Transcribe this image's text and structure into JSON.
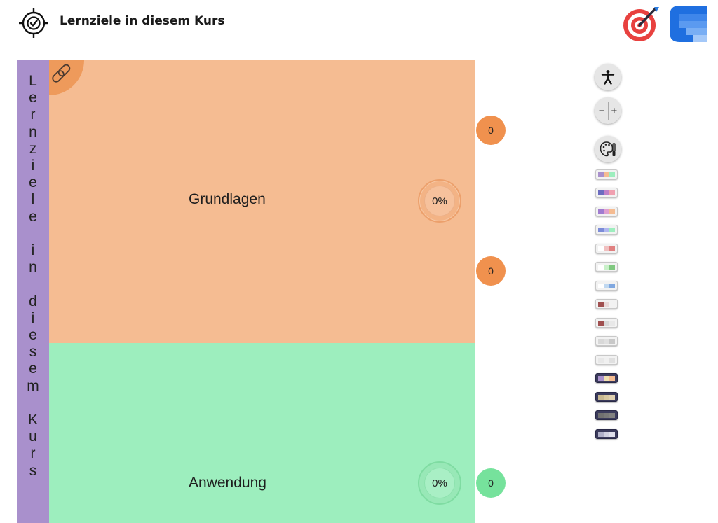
{
  "header": {
    "title": "Lernziele in diesem Kurs",
    "logos": [
      "target-logo",
      "blue-app-logo"
    ]
  },
  "sidebar_label": "Lernziele in diesem Kurs",
  "areas": [
    {
      "label": "Grundlagen",
      "progress": "0%",
      "color": "#f5bc92"
    },
    {
      "label": "Anwendung",
      "progress": "0%",
      "color": "#9deebe"
    }
  ],
  "badges": [
    {
      "value": "0",
      "color": "#f0914e"
    },
    {
      "value": "0",
      "color": "#f0914e"
    },
    {
      "value": "0",
      "color": "#76e29c"
    }
  ],
  "toolbar": {
    "accessibility_icon": "accessibility-icon",
    "zoom_minus": "−",
    "zoom_plus": "+",
    "palette_icon": "palette-icon"
  },
  "color_themes": [
    {
      "dark": false,
      "colors": [
        "#a990cc",
        "#f5bc92",
        "#9deebe"
      ]
    },
    {
      "dark": false,
      "colors": [
        "#6c6cc0",
        "#c080c8",
        "#f0a0b0"
      ]
    },
    {
      "dark": false,
      "colors": [
        "#a07cd0",
        "#e0a0d0",
        "#f5bc92"
      ]
    },
    {
      "dark": false,
      "colors": [
        "#7c8cd8",
        "#b0b8f0",
        "#9deebe"
      ]
    },
    {
      "dark": false,
      "colors": [
        "#ffffff",
        "#f0c0c0",
        "#e08080"
      ]
    },
    {
      "dark": false,
      "colors": [
        "#ffffff",
        "#c8f0c8",
        "#80c880"
      ]
    },
    {
      "dark": false,
      "colors": [
        "#ffffff",
        "#c0d8f0",
        "#80a8e0"
      ]
    },
    {
      "dark": false,
      "colors": [
        "#a05050",
        "#e8d8d8",
        "#f2f2f2"
      ]
    },
    {
      "dark": false,
      "colors": [
        "#a05050",
        "#d8d8d8",
        "#e8e8e8"
      ]
    },
    {
      "dark": false,
      "colors": [
        "#d8d8d8",
        "#e0e0e0",
        "#c8c8c8"
      ]
    },
    {
      "dark": false,
      "colors": [
        "#e8e8e8",
        "#f0f0f0",
        "#e0e0e0"
      ]
    },
    {
      "dark": true,
      "colors": [
        "#a990cc",
        "#f0e0b0",
        "#f5bc92"
      ]
    },
    {
      "dark": true,
      "colors": [
        "#c8b890",
        "#d8c8a0",
        "#e0d0b0"
      ]
    },
    {
      "dark": true,
      "colors": [
        "#707070",
        "#787878",
        "#808080"
      ]
    },
    {
      "dark": true,
      "colors": [
        "#b0b0c8",
        "#d0d0e0",
        "#e0e0ec"
      ]
    }
  ]
}
